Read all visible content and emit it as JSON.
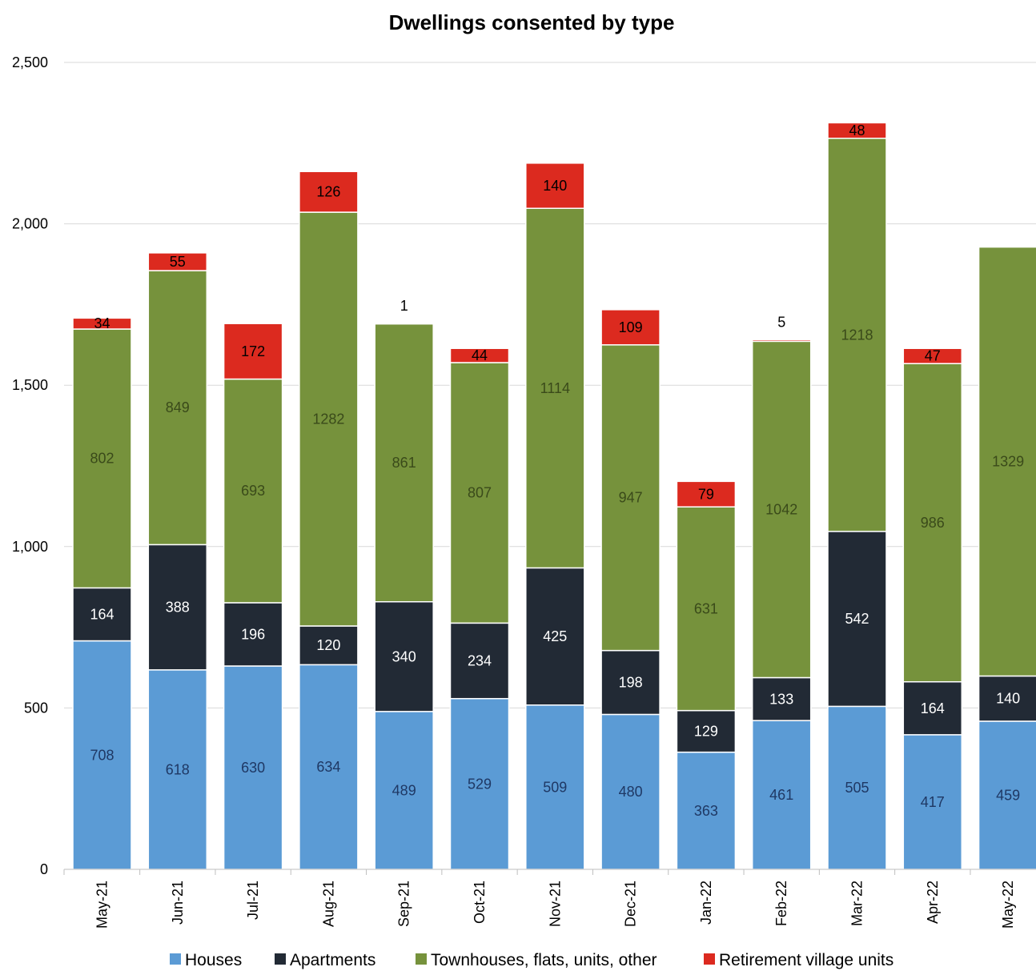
{
  "chart_data": {
    "type": "bar",
    "stacked": true,
    "title": "Dwellings consented by type",
    "xlabel": "",
    "ylabel": "",
    "ylim": [
      0,
      2500
    ],
    "yticks": [
      0,
      500,
      1000,
      1500,
      2000,
      2500
    ],
    "ytick_labels": [
      "0",
      "500",
      "1,000",
      "1,500",
      "2,000",
      "2,500"
    ],
    "grid": true,
    "legend_position": "bottom",
    "categories": [
      "May-21",
      "Jun-21",
      "Jul-21",
      "Aug-21",
      "Sep-21",
      "Oct-21",
      "Nov-21",
      "Dec-21",
      "Jan-22",
      "Feb-22",
      "Mar-22",
      "Apr-22",
      "May-22"
    ],
    "series": [
      {
        "name": "Houses",
        "color": "#5b9bd5",
        "label_color": "#1f3864",
        "values": [
          708,
          618,
          630,
          634,
          489,
          529,
          509,
          480,
          363,
          461,
          505,
          417,
          459
        ]
      },
      {
        "name": "Apartments",
        "color": "#222a35",
        "label_color": "#ffffff",
        "values": [
          164,
          388,
          196,
          120,
          340,
          234,
          425,
          198,
          129,
          133,
          542,
          164,
          140
        ]
      },
      {
        "name": "Townhouses, flats, units, other",
        "color": "#76923c",
        "label_color": "#3a4a1a",
        "values": [
          802,
          849,
          693,
          1282,
          861,
          807,
          1114,
          947,
          631,
          1042,
          1218,
          986,
          1329
        ]
      },
      {
        "name": "Retirement village units",
        "color": "#dc2a1f",
        "label_color": "#000000",
        "values": [
          34,
          55,
          172,
          126,
          1,
          44,
          140,
          109,
          79,
          5,
          48,
          47,
          null
        ]
      }
    ]
  }
}
